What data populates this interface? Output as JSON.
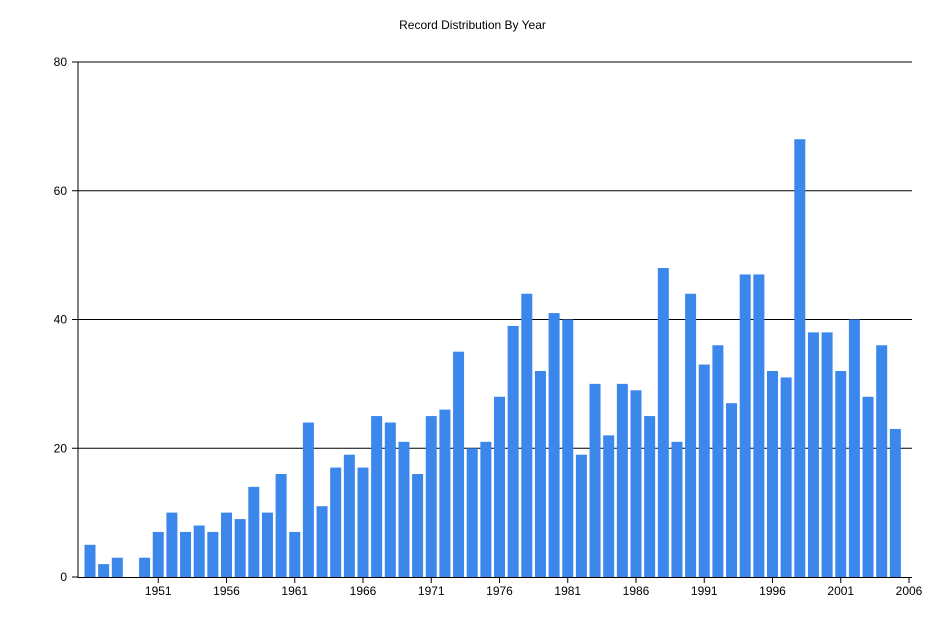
{
  "chart_data": {
    "type": "bar",
    "title": "Record Distribution By Year",
    "xlabel": "",
    "ylabel": "",
    "ylim": [
      0,
      80
    ],
    "yticks": [
      0,
      20,
      40,
      60,
      80
    ],
    "xtick_labels": [
      "1951",
      "1956",
      "1961",
      "1966",
      "1971",
      "1976",
      "1981",
      "1986",
      "1991",
      "1996",
      "2001",
      "2006"
    ],
    "categories": [
      "1946",
      "1947",
      "1948",
      "1949",
      "1950",
      "1951",
      "1952",
      "1953",
      "1954",
      "1955",
      "1956",
      "1957",
      "1958",
      "1959",
      "1960",
      "1961",
      "1962",
      "1963",
      "1964",
      "1965",
      "1966",
      "1967",
      "1968",
      "1969",
      "1970",
      "1971",
      "1972",
      "1973",
      "1974",
      "1975",
      "1976",
      "1977",
      "1978",
      "1979",
      "1980",
      "1981",
      "1982",
      "1983",
      "1984",
      "1985",
      "1986",
      "1987",
      "1988",
      "1989",
      "1990",
      "1991",
      "1992",
      "1993",
      "1994",
      "1995",
      "1996",
      "1997",
      "1998",
      "1999",
      "2000",
      "2001",
      "2002",
      "2003",
      "2004",
      "2005",
      "2006"
    ],
    "values": [
      5,
      2,
      3,
      0,
      3,
      7,
      10,
      7,
      8,
      7,
      10,
      9,
      14,
      10,
      16,
      7,
      24,
      11,
      17,
      19,
      17,
      25,
      24,
      21,
      16,
      25,
      26,
      35,
      20,
      21,
      28,
      39,
      44,
      32,
      41,
      40,
      19,
      30,
      22,
      30,
      29,
      25,
      48,
      21,
      44,
      33,
      36,
      27,
      47,
      47,
      32,
      31,
      68,
      38,
      38,
      32,
      40,
      28,
      36,
      23,
      0
    ],
    "grid": true,
    "legend": "none",
    "bar_color": "#3c87eb"
  }
}
